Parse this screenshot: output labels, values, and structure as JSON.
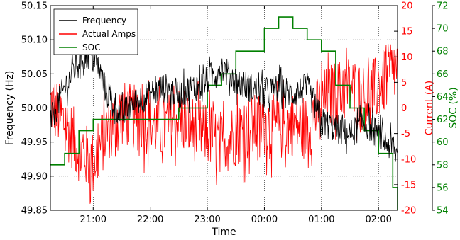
{
  "chart_data": {
    "type": "line",
    "title": "",
    "xlabel": "Time",
    "x_ticks": [
      "21:00",
      "22:00",
      "23:00",
      "00:00",
      "01:00",
      "02:00"
    ],
    "x_start": "20:15",
    "x_end": "02:20",
    "y_left": {
      "label": "Frequency (Hz)",
      "lim": [
        49.85,
        50.15
      ],
      "ticks": [
        "49.85",
        "49.90",
        "49.95",
        "50.00",
        "50.05",
        "50.10",
        "50.15"
      ],
      "color": "#000000"
    },
    "y_right1": {
      "label": "Current (A)",
      "lim": [
        -20,
        20
      ],
      "ticks": [
        "-20",
        "-15",
        "-10",
        "-5",
        "0",
        "5",
        "10",
        "15",
        "20"
      ],
      "color": "#ff0000"
    },
    "y_right2": {
      "label": "SOC (%)",
      "lim": [
        54,
        72
      ],
      "ticks": [
        "54",
        "56",
        "58",
        "60",
        "62",
        "64",
        "66",
        "68",
        "70",
        "72"
      ],
      "color": "#008000"
    },
    "grid": true,
    "legend_position": "top-left",
    "series": [
      {
        "name": "Frequency",
        "axis": "left",
        "color": "#000000",
        "x": [
          "20:15",
          "20:30",
          "20:45",
          "21:00",
          "21:15",
          "21:30",
          "21:45",
          "22:00",
          "22:15",
          "22:30",
          "22:45",
          "23:00",
          "23:15",
          "23:30",
          "23:45",
          "00:00",
          "00:15",
          "00:30",
          "00:45",
          "01:00",
          "01:15",
          "01:30",
          "01:45",
          "02:00",
          "02:15",
          "02:20"
        ],
        "values": [
          49.98,
          50.03,
          50.07,
          50.08,
          50.02,
          49.99,
          50.01,
          50.02,
          50.03,
          50.02,
          50.03,
          50.04,
          50.06,
          50.04,
          50.03,
          50.02,
          50.03,
          50.02,
          50.03,
          49.98,
          49.97,
          49.96,
          49.98,
          49.96,
          49.94,
          49.93
        ]
      },
      {
        "name": "Actual Amps",
        "axis": "right1",
        "color": "#ff0000",
        "x": [
          "20:15",
          "20:30",
          "20:45",
          "21:00",
          "21:15",
          "21:30",
          "21:45",
          "22:00",
          "22:15",
          "22:30",
          "22:45",
          "23:00",
          "23:15",
          "23:30",
          "23:45",
          "00:00",
          "00:15",
          "00:30",
          "00:45",
          "01:00",
          "01:15",
          "01:30",
          "01:45",
          "02:00",
          "02:15",
          "02:20"
        ],
        "values": [
          1,
          -3,
          -8,
          -11,
          -4,
          -1,
          -2,
          -3,
          -4,
          -2,
          -4,
          -5,
          -7,
          -5,
          -4,
          -3,
          -4,
          -3,
          -4,
          1,
          3,
          4,
          2,
          4,
          7,
          8
        ]
      },
      {
        "name": "SOC",
        "axis": "right2",
        "color": "#008000",
        "x": [
          "20:15",
          "20:30",
          "20:45",
          "21:00",
          "21:15",
          "21:30",
          "21:45",
          "22:00",
          "22:15",
          "22:30",
          "22:45",
          "23:00",
          "23:15",
          "23:30",
          "23:45",
          "00:00",
          "00:15",
          "00:30",
          "00:45",
          "01:00",
          "01:15",
          "01:30",
          "01:45",
          "02:00",
          "02:15",
          "02:20"
        ],
        "values": [
          58,
          59,
          61,
          62,
          62,
          62,
          62,
          62,
          62,
          63,
          63,
          65,
          66,
          68,
          68,
          70,
          71,
          70,
          69,
          68,
          65,
          63,
          61,
          59,
          56,
          54
        ]
      }
    ]
  }
}
